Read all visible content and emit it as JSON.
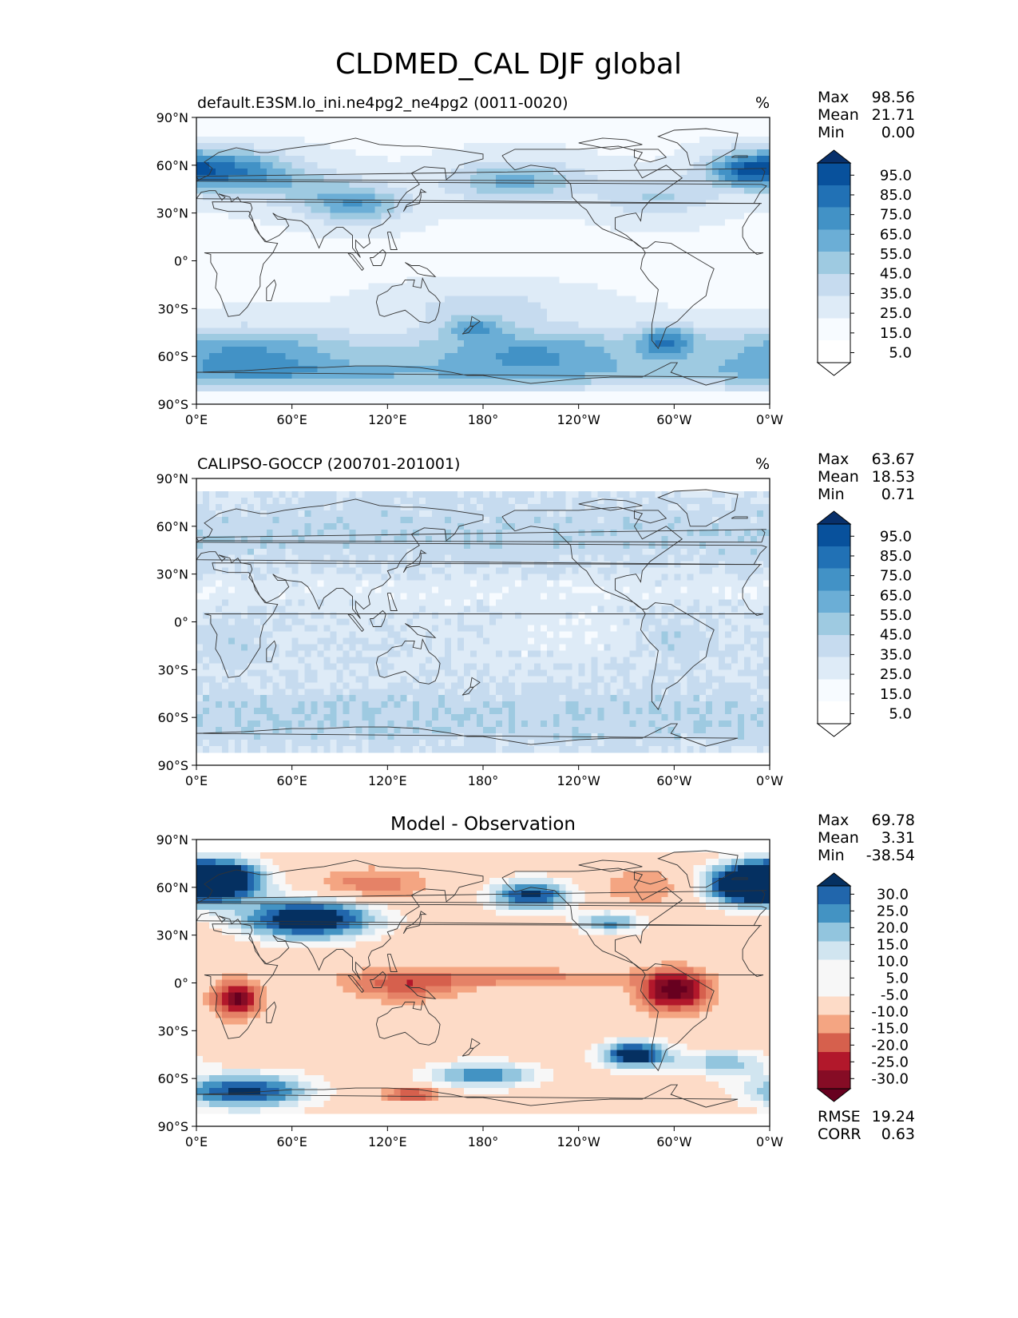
{
  "title": "CLDMED_CAL DJF global",
  "colors": {
    "seq": [
      "#f7fbff",
      "#deebf7",
      "#c6dbef",
      "#9ecae1",
      "#6baed6",
      "#4292c6",
      "#2171b5",
      "#08519c",
      "#08306b"
    ],
    "div": [
      "#67001f",
      "#b2182b",
      "#d6604d",
      "#f4a582",
      "#fddbc7",
      "#f7f7f7",
      "#d1e5f0",
      "#92c5de",
      "#4393c3",
      "#2166ac",
      "#053061"
    ],
    "coast": "#333333"
  },
  "chart_data": [
    {
      "type": "heatmap",
      "title": "default.E3SM.lo_ini.ne4pg2_ne4pg2 (0011-0020)",
      "units": "%",
      "x_ticks": [
        "0°E",
        "60°E",
        "120°E",
        "180°",
        "120°W",
        "60°W",
        "0°W"
      ],
      "y_ticks": [
        "90°N",
        "60°N",
        "30°N",
        "0°",
        "30°S",
        "60°S",
        "90°S"
      ],
      "xlim": [
        0,
        360
      ],
      "ylim": [
        -90,
        90
      ],
      "stats": [
        [
          "Max",
          "98.56"
        ],
        [
          "Mean",
          "21.71"
        ],
        [
          "Min",
          "0.00"
        ]
      ],
      "colorbar_labels": [
        "95.0",
        "85.0",
        "75.0",
        "65.0",
        "55.0",
        "45.0",
        "35.0",
        "25.0",
        "15.0",
        "5.0"
      ],
      "colormap": "Blues",
      "mode": "model",
      "vmax": 98.56,
      "mean": 21.71,
      "vmin": 0.0
    },
    {
      "type": "heatmap",
      "title": "CALIPSO-GOCCP (200701-201001)",
      "units": "%",
      "x_ticks": [
        "0°E",
        "60°E",
        "120°E",
        "180°",
        "120°W",
        "60°W",
        "0°W"
      ],
      "y_ticks": [
        "90°N",
        "60°N",
        "30°N",
        "0°",
        "30°S",
        "60°S",
        "90°S"
      ],
      "xlim": [
        0,
        360
      ],
      "ylim": [
        -90,
        90
      ],
      "stats": [
        [
          "Max",
          "63.67"
        ],
        [
          "Mean",
          "18.53"
        ],
        [
          "Min",
          "0.71"
        ]
      ],
      "colorbar_labels": [
        "95.0",
        "85.0",
        "75.0",
        "65.0",
        "55.0",
        "45.0",
        "35.0",
        "25.0",
        "15.0",
        "5.0"
      ],
      "colormap": "Blues",
      "mode": "obs",
      "vmax": 63.67,
      "mean": 18.53,
      "vmin": 0.71
    },
    {
      "type": "heatmap",
      "title": "Model - Observation",
      "units": "",
      "x_ticks": [
        "0°E",
        "60°E",
        "120°E",
        "180°",
        "120°W",
        "60°W",
        "0°W"
      ],
      "y_ticks": [
        "90°N",
        "60°N",
        "30°N",
        "0°",
        "30°S",
        "60°S",
        "90°S"
      ],
      "xlim": [
        0,
        360
      ],
      "ylim": [
        -90,
        90
      ],
      "stats": [
        [
          "Max",
          "69.78"
        ],
        [
          "Mean",
          "3.31"
        ],
        [
          "Min",
          "-38.54"
        ]
      ],
      "colorbar_labels": [
        "30.0",
        "25.0",
        "20.0",
        "15.0",
        "10.0",
        "5.0",
        "-5.0",
        "-10.0",
        "-15.0",
        "-20.0",
        "-25.0",
        "-30.0"
      ],
      "colormap": "RdBu_r",
      "mode": "diff",
      "vmax": 69.78,
      "mean": 3.31,
      "vmin": -38.54,
      "metrics": [
        [
          "RMSE",
          "19.24"
        ],
        [
          "CORR",
          "0.63"
        ]
      ]
    }
  ]
}
